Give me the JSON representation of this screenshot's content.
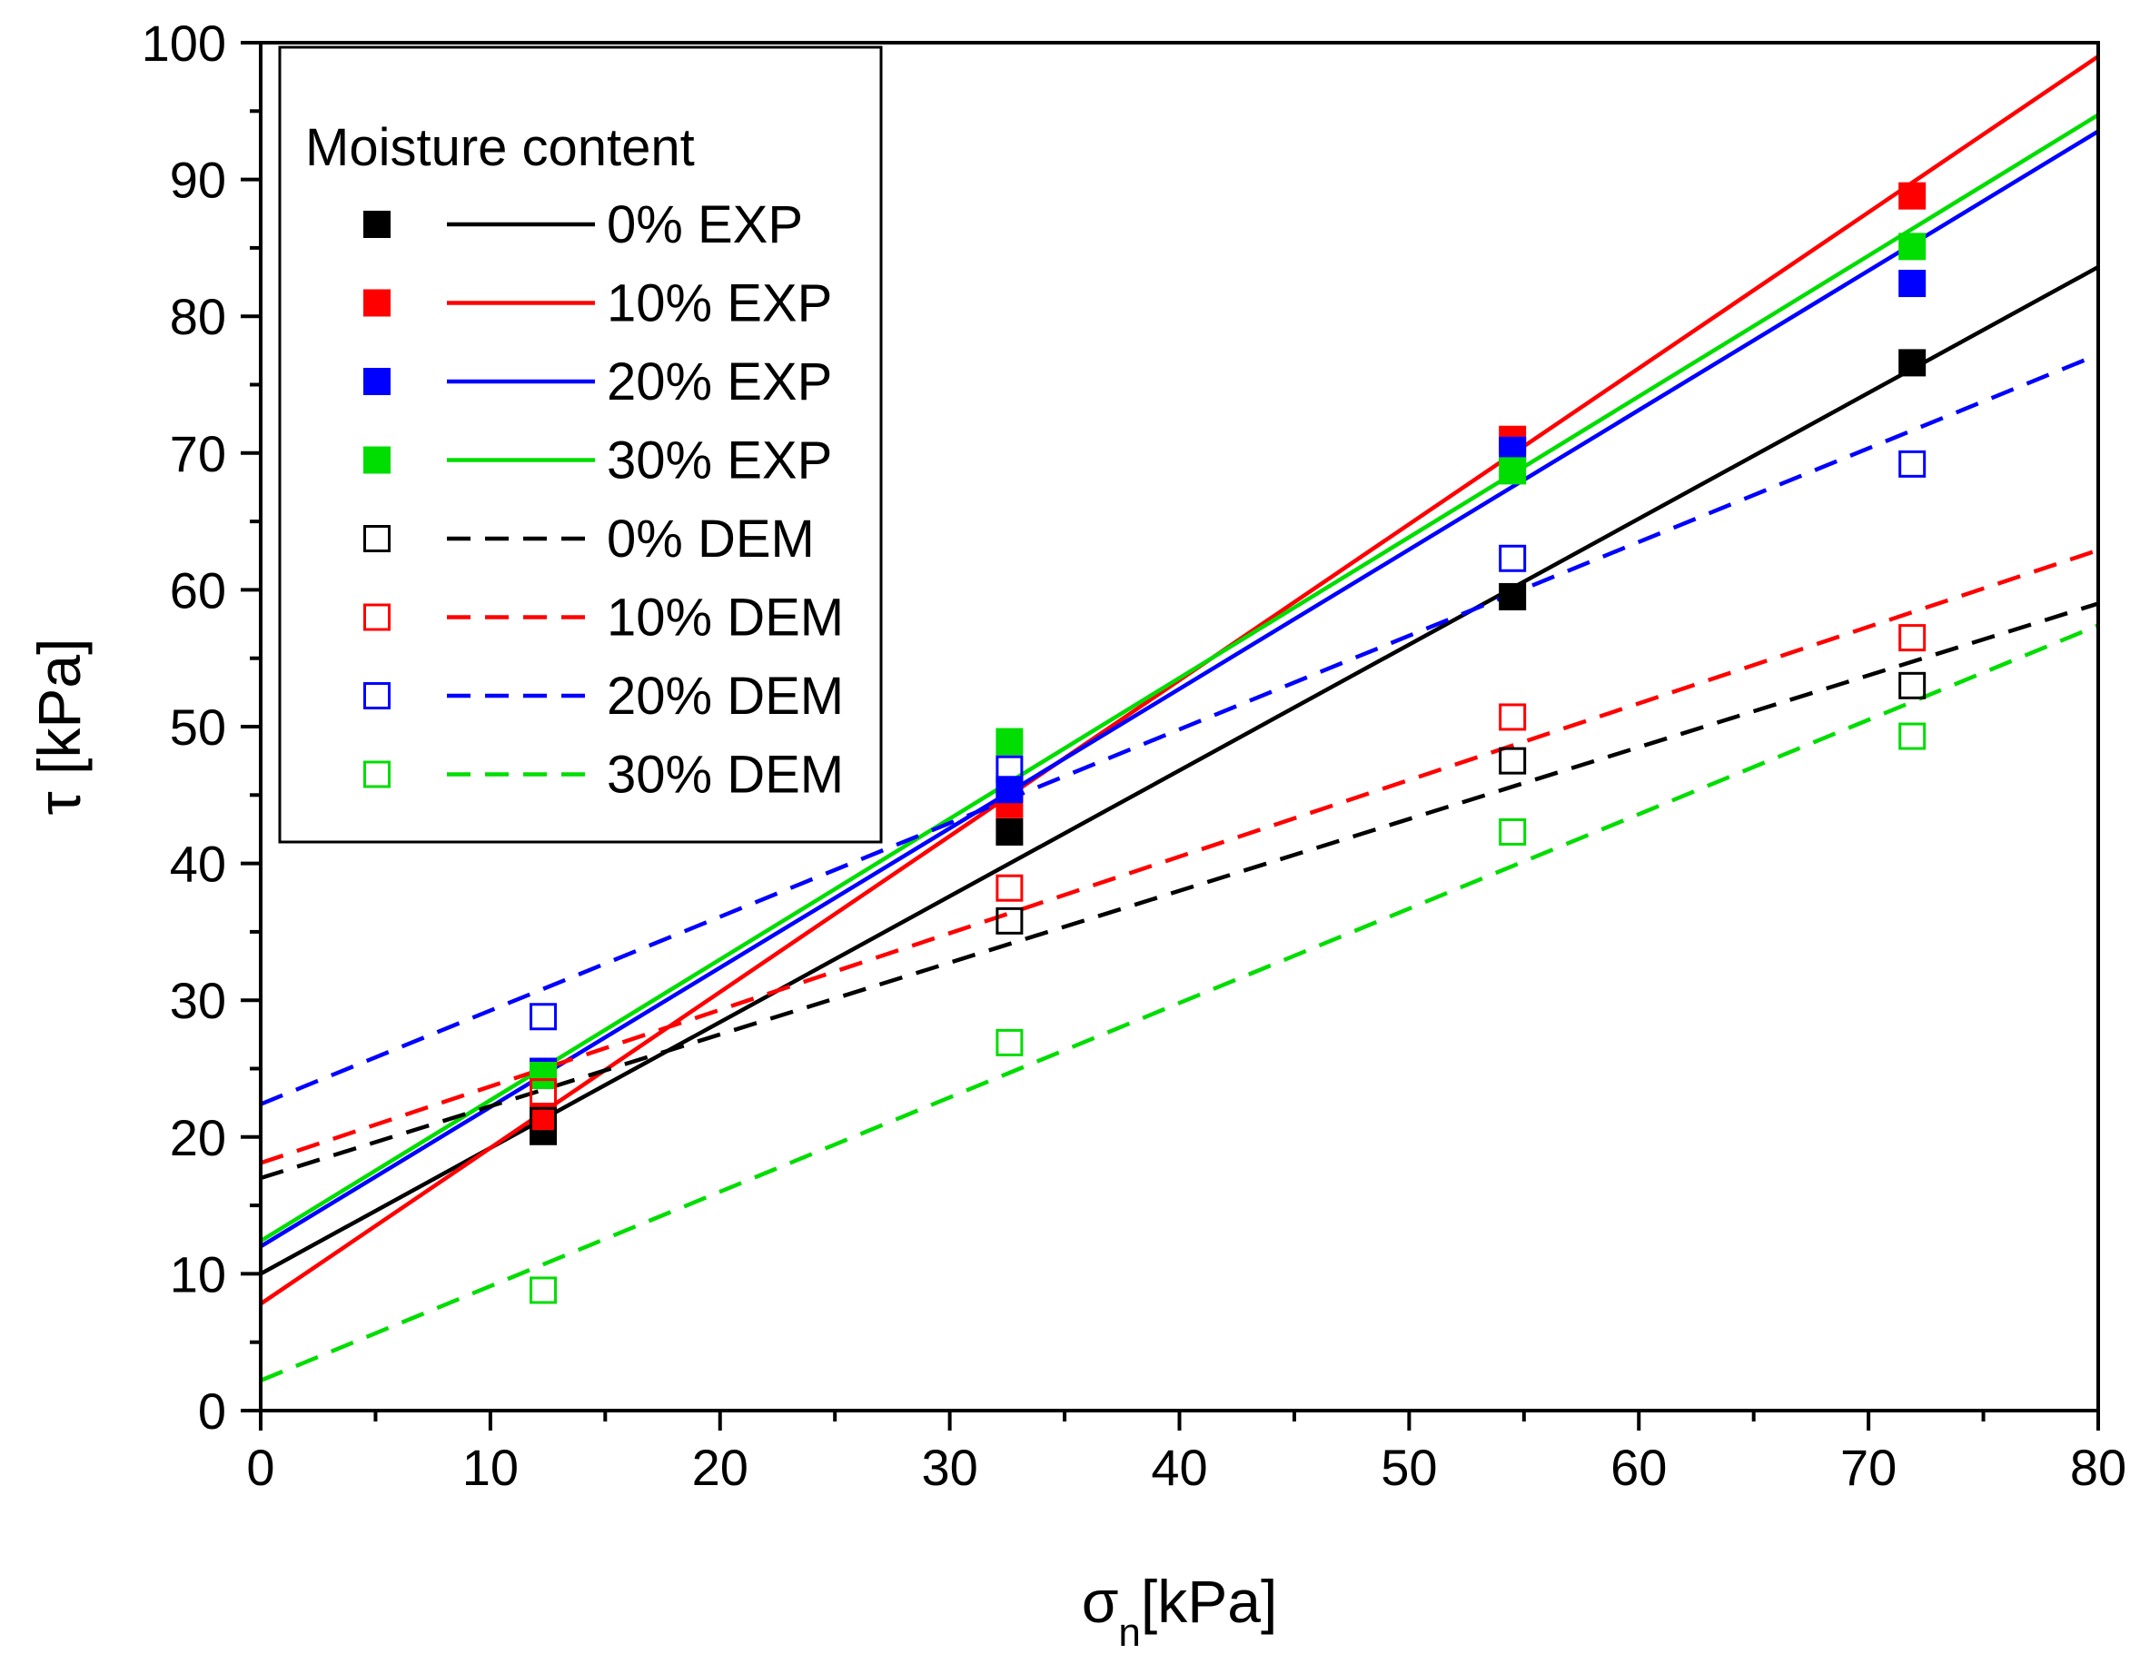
{
  "chart_data": {
    "type": "scatter",
    "xlabel": {
      "main": "σ",
      "sub": "n",
      "rest": "[kPa]"
    },
    "ylabel": "τ [kPa]",
    "xlim": [
      0,
      80
    ],
    "ylim": [
      0,
      100
    ],
    "x_ticks": [
      "0",
      "10",
      "20",
      "30",
      "40",
      "50",
      "60",
      "70",
      "80"
    ],
    "y_ticks": [
      "0",
      "10",
      "20",
      "30",
      "40",
      "50",
      "60",
      "70",
      "80",
      "90",
      "100"
    ],
    "grid": false,
    "legend": {
      "title": "Moisture content",
      "placement": "top-left"
    },
    "x": [
      12.3,
      32.6,
      54.5,
      71.9
    ],
    "series": [
      {
        "name": "0% EXP",
        "color": "#000000",
        "marker": "filled-square",
        "line": "solid",
        "values": [
          20.4,
          42.3,
          59.5,
          76.6
        ],
        "fit": {
          "intercept": 10.0,
          "slope": 0.92
        }
      },
      {
        "name": "10% EXP",
        "color": "#ff0000",
        "marker": "filled-square",
        "line": "solid",
        "values": [
          21.5,
          44.3,
          71.0,
          88.8
        ],
        "fit": {
          "intercept": 7.8,
          "slope": 1.14
        }
      },
      {
        "name": "20% EXP",
        "color": "#0000ff",
        "marker": "filled-square",
        "line": "solid",
        "values": [
          24.8,
          45.4,
          70.2,
          82.4
        ],
        "fit": {
          "intercept": 12.0,
          "slope": 1.019
        }
      },
      {
        "name": "30% EXP",
        "color": "#00dd00",
        "marker": "filled-square",
        "line": "solid",
        "values": [
          24.5,
          48.9,
          68.7,
          85.1
        ],
        "fit": {
          "intercept": 12.4,
          "slope": 1.029
        }
      },
      {
        "name": "0% DEM",
        "color": "#000000",
        "marker": "open-square",
        "line": "dashed",
        "values": [
          21.2,
          35.8,
          47.5,
          53.0
        ],
        "fit": {
          "intercept": 17.0,
          "slope": 0.525
        }
      },
      {
        "name": "10% DEM",
        "color": "#ff0000",
        "marker": "open-square",
        "line": "dashed",
        "values": [
          23.3,
          38.2,
          50.7,
          56.5
        ],
        "fit": {
          "intercept": 18.1,
          "slope": 0.56
        }
      },
      {
        "name": "20% DEM",
        "color": "#0000ff",
        "marker": "open-square",
        "line": "dashed",
        "values": [
          28.8,
          46.9,
          62.3,
          69.2
        ],
        "fit": {
          "intercept": 22.4,
          "slope": 0.685
        }
      },
      {
        "name": "30% DEM",
        "color": "#00dd00",
        "marker": "open-square",
        "line": "dashed",
        "values": [
          8.8,
          26.9,
          42.3,
          49.3
        ],
        "fit": {
          "intercept": 2.2,
          "slope": 0.69
        }
      }
    ]
  }
}
